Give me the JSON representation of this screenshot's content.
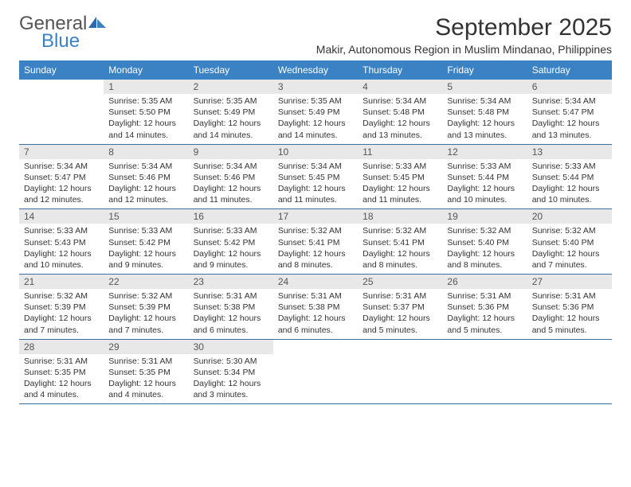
{
  "logo": {
    "text1": "General",
    "text2": "Blue"
  },
  "title": "September 2025",
  "location": "Makir, Autonomous Region in Muslim Mindanao, Philippines",
  "colors": {
    "header_bg": "#3b82c4",
    "header_text": "#ffffff",
    "daynum_bg": "#e8e8e8",
    "daynum_text": "#555555",
    "divider": "#3b6fa0",
    "body_text": "#333333",
    "logo_gray": "#555555",
    "logo_blue": "#3b82c4"
  },
  "fonts": {
    "title_size": 30,
    "location_size": 14,
    "dayheader_size": 12,
    "daynum_size": 12,
    "info_size": 10.5
  },
  "dayNames": [
    "Sunday",
    "Monday",
    "Tuesday",
    "Wednesday",
    "Thursday",
    "Friday",
    "Saturday"
  ],
  "weeks": [
    [
      {
        "day": "",
        "sunrise": "",
        "sunset": "",
        "daylight": ""
      },
      {
        "day": "1",
        "sunrise": "Sunrise: 5:35 AM",
        "sunset": "Sunset: 5:50 PM",
        "daylight": "Daylight: 12 hours and 14 minutes."
      },
      {
        "day": "2",
        "sunrise": "Sunrise: 5:35 AM",
        "sunset": "Sunset: 5:49 PM",
        "daylight": "Daylight: 12 hours and 14 minutes."
      },
      {
        "day": "3",
        "sunrise": "Sunrise: 5:35 AM",
        "sunset": "Sunset: 5:49 PM",
        "daylight": "Daylight: 12 hours and 14 minutes."
      },
      {
        "day": "4",
        "sunrise": "Sunrise: 5:34 AM",
        "sunset": "Sunset: 5:48 PM",
        "daylight": "Daylight: 12 hours and 13 minutes."
      },
      {
        "day": "5",
        "sunrise": "Sunrise: 5:34 AM",
        "sunset": "Sunset: 5:48 PM",
        "daylight": "Daylight: 12 hours and 13 minutes."
      },
      {
        "day": "6",
        "sunrise": "Sunrise: 5:34 AM",
        "sunset": "Sunset: 5:47 PM",
        "daylight": "Daylight: 12 hours and 13 minutes."
      }
    ],
    [
      {
        "day": "7",
        "sunrise": "Sunrise: 5:34 AM",
        "sunset": "Sunset: 5:47 PM",
        "daylight": "Daylight: 12 hours and 12 minutes."
      },
      {
        "day": "8",
        "sunrise": "Sunrise: 5:34 AM",
        "sunset": "Sunset: 5:46 PM",
        "daylight": "Daylight: 12 hours and 12 minutes."
      },
      {
        "day": "9",
        "sunrise": "Sunrise: 5:34 AM",
        "sunset": "Sunset: 5:46 PM",
        "daylight": "Daylight: 12 hours and 11 minutes."
      },
      {
        "day": "10",
        "sunrise": "Sunrise: 5:34 AM",
        "sunset": "Sunset: 5:45 PM",
        "daylight": "Daylight: 12 hours and 11 minutes."
      },
      {
        "day": "11",
        "sunrise": "Sunrise: 5:33 AM",
        "sunset": "Sunset: 5:45 PM",
        "daylight": "Daylight: 12 hours and 11 minutes."
      },
      {
        "day": "12",
        "sunrise": "Sunrise: 5:33 AM",
        "sunset": "Sunset: 5:44 PM",
        "daylight": "Daylight: 12 hours and 10 minutes."
      },
      {
        "day": "13",
        "sunrise": "Sunrise: 5:33 AM",
        "sunset": "Sunset: 5:44 PM",
        "daylight": "Daylight: 12 hours and 10 minutes."
      }
    ],
    [
      {
        "day": "14",
        "sunrise": "Sunrise: 5:33 AM",
        "sunset": "Sunset: 5:43 PM",
        "daylight": "Daylight: 12 hours and 10 minutes."
      },
      {
        "day": "15",
        "sunrise": "Sunrise: 5:33 AM",
        "sunset": "Sunset: 5:42 PM",
        "daylight": "Daylight: 12 hours and 9 minutes."
      },
      {
        "day": "16",
        "sunrise": "Sunrise: 5:33 AM",
        "sunset": "Sunset: 5:42 PM",
        "daylight": "Daylight: 12 hours and 9 minutes."
      },
      {
        "day": "17",
        "sunrise": "Sunrise: 5:32 AM",
        "sunset": "Sunset: 5:41 PM",
        "daylight": "Daylight: 12 hours and 8 minutes."
      },
      {
        "day": "18",
        "sunrise": "Sunrise: 5:32 AM",
        "sunset": "Sunset: 5:41 PM",
        "daylight": "Daylight: 12 hours and 8 minutes."
      },
      {
        "day": "19",
        "sunrise": "Sunrise: 5:32 AM",
        "sunset": "Sunset: 5:40 PM",
        "daylight": "Daylight: 12 hours and 8 minutes."
      },
      {
        "day": "20",
        "sunrise": "Sunrise: 5:32 AM",
        "sunset": "Sunset: 5:40 PM",
        "daylight": "Daylight: 12 hours and 7 minutes."
      }
    ],
    [
      {
        "day": "21",
        "sunrise": "Sunrise: 5:32 AM",
        "sunset": "Sunset: 5:39 PM",
        "daylight": "Daylight: 12 hours and 7 minutes."
      },
      {
        "day": "22",
        "sunrise": "Sunrise: 5:32 AM",
        "sunset": "Sunset: 5:39 PM",
        "daylight": "Daylight: 12 hours and 7 minutes."
      },
      {
        "day": "23",
        "sunrise": "Sunrise: 5:31 AM",
        "sunset": "Sunset: 5:38 PM",
        "daylight": "Daylight: 12 hours and 6 minutes."
      },
      {
        "day": "24",
        "sunrise": "Sunrise: 5:31 AM",
        "sunset": "Sunset: 5:38 PM",
        "daylight": "Daylight: 12 hours and 6 minutes."
      },
      {
        "day": "25",
        "sunrise": "Sunrise: 5:31 AM",
        "sunset": "Sunset: 5:37 PM",
        "daylight": "Daylight: 12 hours and 5 minutes."
      },
      {
        "day": "26",
        "sunrise": "Sunrise: 5:31 AM",
        "sunset": "Sunset: 5:36 PM",
        "daylight": "Daylight: 12 hours and 5 minutes."
      },
      {
        "day": "27",
        "sunrise": "Sunrise: 5:31 AM",
        "sunset": "Sunset: 5:36 PM",
        "daylight": "Daylight: 12 hours and 5 minutes."
      }
    ],
    [
      {
        "day": "28",
        "sunrise": "Sunrise: 5:31 AM",
        "sunset": "Sunset: 5:35 PM",
        "daylight": "Daylight: 12 hours and 4 minutes."
      },
      {
        "day": "29",
        "sunrise": "Sunrise: 5:31 AM",
        "sunset": "Sunset: 5:35 PM",
        "daylight": "Daylight: 12 hours and 4 minutes."
      },
      {
        "day": "30",
        "sunrise": "Sunrise: 5:30 AM",
        "sunset": "Sunset: 5:34 PM",
        "daylight": "Daylight: 12 hours and 3 minutes."
      },
      {
        "day": "",
        "sunrise": "",
        "sunset": "",
        "daylight": ""
      },
      {
        "day": "",
        "sunrise": "",
        "sunset": "",
        "daylight": ""
      },
      {
        "day": "",
        "sunrise": "",
        "sunset": "",
        "daylight": ""
      },
      {
        "day": "",
        "sunrise": "",
        "sunset": "",
        "daylight": ""
      }
    ]
  ]
}
